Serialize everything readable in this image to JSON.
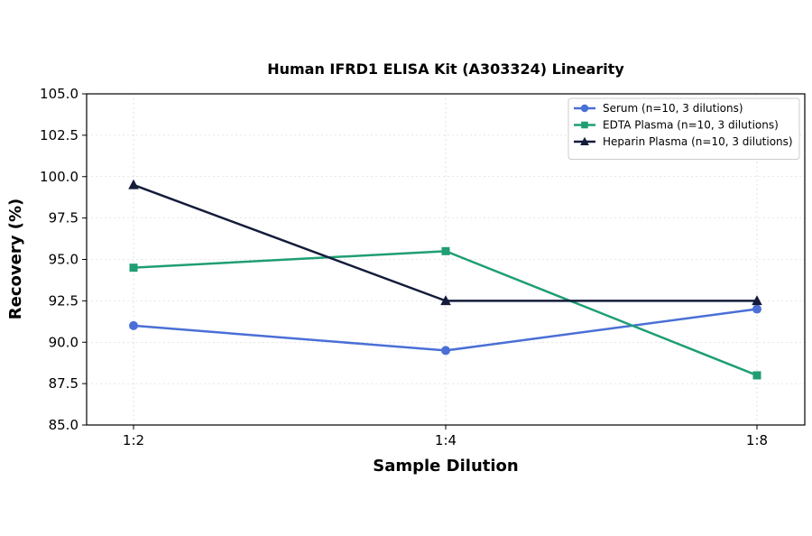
{
  "chart_data": {
    "type": "line",
    "title": "Human IFRD1 ELISA Kit (A303324) Linearity",
    "xlabel": "Sample Dilution",
    "ylabel": "Recovery (%)",
    "categories": [
      "1:2",
      "1:4",
      "1:8"
    ],
    "ylim": [
      85.0,
      105.0
    ],
    "yticks": [
      "85.0",
      "87.5",
      "90.0",
      "92.5",
      "95.0",
      "97.5",
      "100.0",
      "102.5",
      "105.0"
    ],
    "grid": true,
    "legend_position": "top-right",
    "series": [
      {
        "name": "Serum (n=10, 3 dilutions)",
        "values": [
          91.0,
          89.5,
          92.0
        ],
        "color": "#4a6fd6",
        "marker": "circle"
      },
      {
        "name": "EDTA Plasma (n=10, 3 dilutions)",
        "values": [
          94.5,
          95.5,
          88.0
        ],
        "color": "#1f9e74",
        "marker": "square"
      },
      {
        "name": "Heparin Plasma (n=10, 3 dilutions)",
        "values": [
          99.5,
          92.5,
          92.5
        ],
        "color": "#141c3a",
        "marker": "triangle"
      }
    ]
  }
}
